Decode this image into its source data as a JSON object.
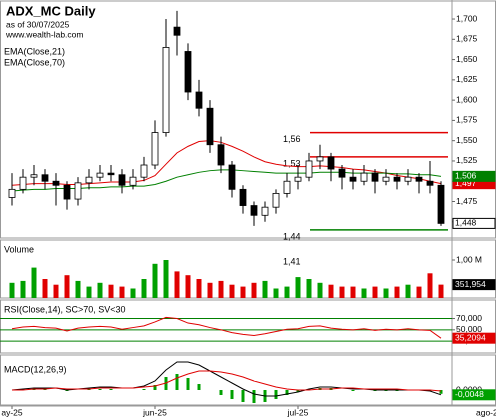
{
  "chart_data": [
    {
      "type": "candlestick",
      "title": "ADX_MC Daily",
      "subtitle": "as of 30/07/2025",
      "source": "www.wealth-lab.com",
      "open": [
        1.48,
        1.49,
        1.505,
        1.508,
        1.5,
        1.495,
        1.478,
        1.498,
        1.505,
        1.51,
        1.508,
        1.495,
        1.505,
        1.52,
        1.56,
        1.69,
        1.66,
        1.61,
        1.59,
        1.545,
        1.52,
        1.49,
        1.47,
        1.458,
        1.468,
        1.485,
        1.5,
        1.505,
        1.525,
        1.53,
        1.515,
        1.505,
        1.5,
        1.51,
        1.5,
        1.505,
        1.5,
        1.505,
        1.5,
        1.495
      ],
      "high": [
        1.51,
        1.515,
        1.52,
        1.515,
        1.51,
        1.5,
        1.505,
        1.515,
        1.52,
        1.52,
        1.515,
        1.515,
        1.53,
        1.575,
        1.7,
        1.71,
        1.67,
        1.625,
        1.6,
        1.555,
        1.525,
        1.495,
        1.475,
        1.475,
        1.49,
        1.51,
        1.52,
        1.535,
        1.545,
        1.535,
        1.52,
        1.515,
        1.52,
        1.515,
        1.515,
        1.51,
        1.515,
        1.51,
        1.525,
        1.5
      ],
      "low": [
        1.47,
        1.485,
        1.495,
        1.49,
        1.47,
        1.465,
        1.47,
        1.49,
        1.5,
        1.5,
        1.485,
        1.49,
        1.5,
        1.515,
        1.555,
        1.655,
        1.6,
        1.58,
        1.535,
        1.51,
        1.48,
        1.46,
        1.445,
        1.45,
        1.46,
        1.48,
        1.49,
        1.5,
        1.515,
        1.5,
        1.49,
        1.49,
        1.495,
        1.485,
        1.495,
        1.49,
        1.495,
        1.485,
        1.485,
        1.445
      ],
      "close": [
        1.49,
        1.505,
        1.508,
        1.5,
        1.495,
        1.478,
        1.498,
        1.505,
        1.51,
        1.508,
        1.495,
        1.505,
        1.52,
        1.56,
        1.665,
        1.68,
        1.61,
        1.59,
        1.545,
        1.52,
        1.49,
        1.47,
        1.458,
        1.468,
        1.485,
        1.5,
        1.505,
        1.525,
        1.53,
        1.515,
        1.505,
        1.5,
        1.51,
        1.5,
        1.505,
        1.5,
        1.505,
        1.5,
        1.495,
        1.448
      ],
      "close_last_label": "1,448",
      "series": [
        {
          "name": "EMA(Close,21)",
          "color": "#e00000",
          "last_label": "1,497",
          "values": [
            1.495,
            1.496,
            1.497,
            1.497,
            1.497,
            1.496,
            1.496,
            1.497,
            1.498,
            1.499,
            1.499,
            1.499,
            1.501,
            1.507,
            1.521,
            1.535,
            1.543,
            1.549,
            1.55,
            1.548,
            1.543,
            1.537,
            1.53,
            1.524,
            1.521,
            1.519,
            1.518,
            1.518,
            1.519,
            1.518,
            1.517,
            1.515,
            1.514,
            1.512,
            1.51,
            1.507,
            1.505,
            1.503,
            1.5,
            1.497
          ]
        },
        {
          "name": "EMA(Close,70)",
          "color": "#008000",
          "last_label": "1,506",
          "values": [
            1.488,
            1.489,
            1.49,
            1.49,
            1.491,
            1.491,
            1.491,
            1.492,
            1.492,
            1.493,
            1.493,
            1.494,
            1.494,
            1.496,
            1.5,
            1.505,
            1.508,
            1.511,
            1.513,
            1.514,
            1.514,
            1.513,
            1.512,
            1.511,
            1.51,
            1.51,
            1.51,
            1.51,
            1.511,
            1.511,
            1.511,
            1.51,
            1.51,
            1.51,
            1.51,
            1.509,
            1.509,
            1.508,
            1.508,
            1.506
          ]
        }
      ],
      "levels": [
        {
          "value": 1.56,
          "label": "1,56",
          "color": "#e00000"
        },
        {
          "value": 1.53,
          "label": "1,53",
          "color": "#e00000"
        },
        {
          "value": 1.44,
          "label": "1,44",
          "color": "#008000"
        }
      ],
      "annotations": [
        "1,41"
      ],
      "ylim": [
        1.43,
        1.721
      ],
      "yticks": [
        {
          "value": 1.45,
          "label": "1,450"
        },
        {
          "value": 1.475,
          "label": "1,475"
        },
        {
          "value": 1.5,
          "label": "1,500"
        },
        {
          "value": 1.525,
          "label": "1,525"
        },
        {
          "value": 1.55,
          "label": "1,550"
        },
        {
          "value": 1.575,
          "label": "1,575"
        },
        {
          "value": 1.6,
          "label": "1,600"
        },
        {
          "value": 1.625,
          "label": "1,625"
        },
        {
          "value": 1.65,
          "label": "1,650"
        },
        {
          "value": 1.675,
          "label": "1,675"
        },
        {
          "value": 1.7,
          "label": "1,700"
        }
      ]
    },
    {
      "type": "bar",
      "title": "Volume",
      "up_color": "#00a000",
      "down_color": "#e00000",
      "last_label": "351,954",
      "values": [
        400000,
        450000,
        800000,
        500000,
        350000,
        600000,
        450000,
        300000,
        400000,
        350000,
        300000,
        250000,
        500000,
        900000,
        1000000,
        700000,
        600000,
        500000,
        400000,
        450000,
        350000,
        300000,
        400000,
        450000,
        250000,
        300000,
        550000,
        500000,
        400000,
        350000,
        300000,
        300000,
        250000,
        300000,
        250000,
        300000,
        350000,
        300000,
        650000,
        351954
      ],
      "ylim": [
        0,
        1500000
      ],
      "yticks": [
        {
          "value": 1000000,
          "label": "1,00 M"
        }
      ]
    },
    {
      "type": "line",
      "title": "RSI(Close,14), SC>70, SV<30",
      "color": "#e00000",
      "grid_color": "#008000",
      "last_label": "35,2094",
      "values": [
        52,
        55,
        56,
        54,
        53,
        48,
        53,
        55,
        56,
        55,
        51,
        54,
        57,
        64,
        72,
        70,
        62,
        59,
        54,
        50,
        45,
        42,
        40,
        43,
        47,
        51,
        52,
        56,
        57,
        53,
        51,
        50,
        52,
        49,
        51,
        50,
        52,
        50,
        49,
        35.2094
      ],
      "ylim": [
        9,
        101
      ],
      "yticks": [
        {
          "value": 70,
          "label": "70,000"
        },
        {
          "value": 50,
          "label": "50,000"
        },
        {
          "value": 30,
          "label": "30,000"
        }
      ]
    },
    {
      "type": "line",
      "title": "MACD(12,26,9)",
      "series": [
        {
          "color": "#000000",
          "last_label": "-0,0048",
          "last_label_color": "#00a000",
          "values": [
            0,
            0.001,
            0.002,
            0.002,
            0.002,
            0,
            0.001,
            0.002,
            0.003,
            0.003,
            0.002,
            0.002,
            0.004,
            0.009,
            0.02,
            0.028,
            0.028,
            0.025,
            0.019,
            0.013,
            0.007,
            0.001,
            -0.004,
            -0.006,
            -0.006,
            -0.004,
            -0.002,
            0.001,
            0.003,
            0.003,
            0.002,
            0.001,
            0.001,
            0,
            0,
            0,
            0,
            0,
            -0.001,
            -0.0048
          ]
        },
        {
          "color": "#e00000",
          "values": [
            0,
            0,
            0.001,
            0.001,
            0.002,
            0.001,
            0.001,
            0.001,
            0.002,
            0.002,
            0.002,
            0.002,
            0.003,
            0.004,
            0.007,
            0.012,
            0.016,
            0.019,
            0.019,
            0.018,
            0.016,
            0.013,
            0.009,
            0.006,
            0.003,
            0.001,
            0,
            0,
            0.001,
            0.001,
            0.002,
            0.002,
            0.001,
            0.001,
            0.001,
            0.001,
            0,
            0,
            0,
            -0.001
          ]
        }
      ],
      "histogram": {
        "color": "#00a000",
        "values": [
          0,
          0.001,
          0.001,
          0.001,
          0,
          -0.001,
          0,
          0.001,
          0.001,
          0.001,
          0,
          0,
          0.001,
          0.005,
          0.013,
          0.016,
          0.012,
          0.006,
          0,
          -0.005,
          -0.009,
          -0.012,
          -0.013,
          -0.012,
          -0.009,
          -0.005,
          -0.002,
          0.001,
          0.002,
          0.002,
          0,
          -0.001,
          0,
          -0.001,
          -0.001,
          -0.001,
          0,
          0,
          -0.001,
          -0.0038
        ]
      },
      "ylim": [
        -0.015,
        0.034
      ],
      "yticks": [
        {
          "value": 0,
          "label": "0,0000"
        }
      ],
      "categories": [
        "ay-25",
        null,
        null,
        null,
        null,
        null,
        null,
        null,
        null,
        null,
        null,
        null,
        null,
        "jun-25",
        null,
        null,
        null,
        null,
        null,
        null,
        null,
        null,
        null,
        null,
        null,
        null,
        "jul-25",
        null,
        null,
        null,
        null,
        null,
        null,
        null,
        null,
        null,
        null,
        null,
        null,
        null
      ],
      "next_label": "ago-25"
    }
  ]
}
